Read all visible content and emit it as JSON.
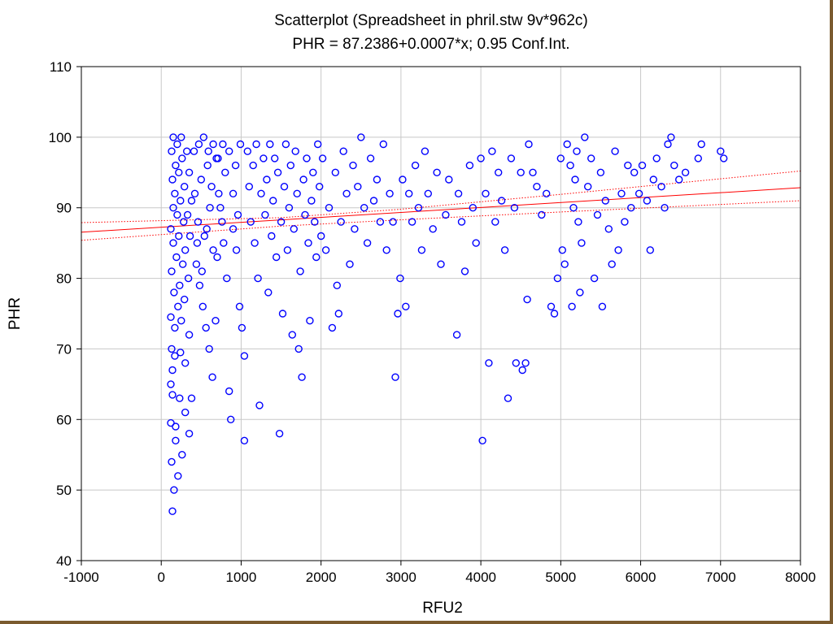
{
  "colors": {
    "points": "#0000ff",
    "fit_line": "#ff0000",
    "confidence_band": "#ff0000",
    "grid": "#c8c8c8",
    "frame": "#7a5a2e"
  },
  "chart_data": {
    "type": "scatter",
    "title": "Scatterplot (Spreadsheet in phril.stw 9v*962c)",
    "subtitle": "PHR = 87.2386+0.0007*x; 0.95 Conf.Int.",
    "xlabel": "RFU2",
    "ylabel": "PHR",
    "xlim": [
      -1000,
      8000
    ],
    "ylim": [
      40,
      110
    ],
    "xticks": [
      -1000,
      0,
      1000,
      2000,
      3000,
      4000,
      5000,
      6000,
      7000,
      8000
    ],
    "yticks": [
      40,
      50,
      60,
      70,
      80,
      90,
      100,
      110
    ],
    "grid": true,
    "legend": "none",
    "marker": "open-circle",
    "regression": {
      "intercept": 87.2386,
      "slope": 0.0007,
      "confidence": 0.95,
      "x_range": [
        -1000,
        8000
      ],
      "upper_band": [
        [
          -1000,
          87.9
        ],
        [
          1500,
          88.6
        ],
        [
          3000,
          89.8
        ],
        [
          5000,
          91.9
        ],
        [
          8000,
          95.2
        ]
      ],
      "lower_band": [
        [
          -1000,
          85.4
        ],
        [
          1500,
          87.4
        ],
        [
          3000,
          88.3
        ],
        [
          5000,
          89.4
        ],
        [
          8000,
          91.0
        ]
      ]
    },
    "points": [
      [
        140,
        47
      ],
      [
        130,
        54
      ],
      [
        160,
        50
      ],
      [
        210,
        52
      ],
      [
        260,
        55
      ],
      [
        180,
        57
      ],
      [
        120,
        59.5
      ],
      [
        180,
        59
      ],
      [
        230,
        63
      ],
      [
        140,
        63.5
      ],
      [
        300,
        61
      ],
      [
        350,
        58
      ],
      [
        380,
        63
      ],
      [
        120,
        65
      ],
      [
        140,
        67
      ],
      [
        170,
        69
      ],
      [
        240,
        69.5
      ],
      [
        130,
        70
      ],
      [
        300,
        68
      ],
      [
        350,
        72
      ],
      [
        170,
        73
      ],
      [
        250,
        74
      ],
      [
        120,
        74.5
      ],
      [
        210,
        76
      ],
      [
        290,
        77
      ],
      [
        160,
        78
      ],
      [
        230,
        79
      ],
      [
        340,
        80
      ],
      [
        130,
        81
      ],
      [
        270,
        82
      ],
      [
        190,
        83
      ],
      [
        300,
        84
      ],
      [
        150,
        85
      ],
      [
        220,
        86
      ],
      [
        360,
        86
      ],
      [
        120,
        87
      ],
      [
        280,
        88
      ],
      [
        200,
        89
      ],
      [
        330,
        89
      ],
      [
        150,
        90
      ],
      [
        240,
        91
      ],
      [
        380,
        91
      ],
      [
        170,
        92
      ],
      [
        290,
        93
      ],
      [
        140,
        94
      ],
      [
        220,
        95
      ],
      [
        350,
        95
      ],
      [
        180,
        96
      ],
      [
        260,
        97
      ],
      [
        130,
        98
      ],
      [
        320,
        98
      ],
      [
        200,
        99
      ],
      [
        150,
        100
      ],
      [
        250,
        100
      ],
      [
        420,
        92
      ],
      [
        460,
        88
      ],
      [
        500,
        94
      ],
      [
        540,
        86
      ],
      [
        580,
        96
      ],
      [
        610,
        90
      ],
      [
        650,
        84
      ],
      [
        690,
        97
      ],
      [
        720,
        92
      ],
      [
        760,
        88
      ],
      [
        800,
        95
      ],
      [
        440,
        82
      ],
      [
        480,
        79
      ],
      [
        520,
        76
      ],
      [
        560,
        73
      ],
      [
        600,
        70
      ],
      [
        640,
        66
      ],
      [
        680,
        74
      ],
      [
        410,
        98
      ],
      [
        470,
        99
      ],
      [
        530,
        100
      ],
      [
        590,
        98
      ],
      [
        650,
        99
      ],
      [
        710,
        97
      ],
      [
        770,
        99
      ],
      [
        450,
        85
      ],
      [
        510,
        81
      ],
      [
        570,
        87
      ],
      [
        630,
        93
      ],
      [
        700,
        83
      ],
      [
        740,
        90
      ],
      [
        780,
        85
      ],
      [
        820,
        80
      ],
      [
        850,
        64
      ],
      [
        870,
        60
      ],
      [
        900,
        92
      ],
      [
        930,
        96
      ],
      [
        960,
        89
      ],
      [
        990,
        99
      ],
      [
        850,
        98
      ],
      [
        900,
        87
      ],
      [
        940,
        84
      ],
      [
        980,
        76
      ],
      [
        1010,
        73
      ],
      [
        1040,
        69
      ],
      [
        1040,
        57
      ],
      [
        1080,
        98
      ],
      [
        1100,
        93
      ],
      [
        1120,
        88
      ],
      [
        1150,
        96
      ],
      [
        1170,
        85
      ],
      [
        1190,
        99
      ],
      [
        1210,
        80
      ],
      [
        1230,
        62
      ],
      [
        1250,
        92
      ],
      [
        1280,
        97
      ],
      [
        1300,
        89
      ],
      [
        1320,
        94
      ],
      [
        1340,
        78
      ],
      [
        1360,
        99
      ],
      [
        1380,
        86
      ],
      [
        1400,
        91
      ],
      [
        1420,
        97
      ],
      [
        1440,
        83
      ],
      [
        1460,
        95
      ],
      [
        1480,
        58
      ],
      [
        1500,
        88
      ],
      [
        1520,
        75
      ],
      [
        1540,
        93
      ],
      [
        1560,
        99
      ],
      [
        1580,
        84
      ],
      [
        1600,
        90
      ],
      [
        1620,
        96
      ],
      [
        1640,
        72
      ],
      [
        1660,
        87
      ],
      [
        1680,
        98
      ],
      [
        1700,
        92
      ],
      [
        1720,
        70
      ],
      [
        1740,
        81
      ],
      [
        1760,
        66
      ],
      [
        1780,
        94
      ],
      [
        1800,
        89
      ],
      [
        1820,
        97
      ],
      [
        1840,
        85
      ],
      [
        1860,
        74
      ],
      [
        1880,
        91
      ],
      [
        1900,
        95
      ],
      [
        1920,
        88
      ],
      [
        1940,
        83
      ],
      [
        1960,
        99
      ],
      [
        1980,
        93
      ],
      [
        2000,
        86
      ],
      [
        2020,
        97
      ],
      [
        2060,
        84
      ],
      [
        2100,
        90
      ],
      [
        2140,
        73
      ],
      [
        2180,
        95
      ],
      [
        2200,
        79
      ],
      [
        2220,
        75
      ],
      [
        2250,
        88
      ],
      [
        2280,
        98
      ],
      [
        2320,
        92
      ],
      [
        2360,
        82
      ],
      [
        2400,
        96
      ],
      [
        2420,
        87
      ],
      [
        2460,
        93
      ],
      [
        2500,
        100
      ],
      [
        2540,
        90
      ],
      [
        2580,
        85
      ],
      [
        2620,
        97
      ],
      [
        2660,
        91
      ],
      [
        2700,
        94
      ],
      [
        2740,
        88
      ],
      [
        2780,
        99
      ],
      [
        2820,
        84
      ],
      [
        2860,
        92
      ],
      [
        2900,
        88
      ],
      [
        2930,
        66
      ],
      [
        2960,
        75
      ],
      [
        2990,
        80
      ],
      [
        3020,
        94
      ],
      [
        3060,
        76
      ],
      [
        3100,
        92
      ],
      [
        3140,
        88
      ],
      [
        3180,
        96
      ],
      [
        3220,
        90
      ],
      [
        3260,
        84
      ],
      [
        3300,
        98
      ],
      [
        3340,
        92
      ],
      [
        3400,
        87
      ],
      [
        3450,
        95
      ],
      [
        3500,
        82
      ],
      [
        3560,
        89
      ],
      [
        3600,
        94
      ],
      [
        3700,
        72
      ],
      [
        3720,
        92
      ],
      [
        3760,
        88
      ],
      [
        3800,
        81
      ],
      [
        3860,
        96
      ],
      [
        3900,
        90
      ],
      [
        3940,
        85
      ],
      [
        4000,
        97
      ],
      [
        4020,
        57
      ],
      [
        4060,
        92
      ],
      [
        4100,
        68
      ],
      [
        4140,
        98
      ],
      [
        4180,
        88
      ],
      [
        4220,
        95
      ],
      [
        4260,
        91
      ],
      [
        4300,
        84
      ],
      [
        4340,
        63
      ],
      [
        4380,
        97
      ],
      [
        4420,
        90
      ],
      [
        4440,
        68
      ],
      [
        4500,
        95
      ],
      [
        4520,
        67
      ],
      [
        4560,
        68
      ],
      [
        4580,
        77
      ],
      [
        4600,
        99
      ],
      [
        4650,
        95
      ],
      [
        4700,
        93
      ],
      [
        4760,
        89
      ],
      [
        4820,
        92
      ],
      [
        4880,
        76
      ],
      [
        4920,
        75
      ],
      [
        4960,
        80
      ],
      [
        5000,
        97
      ],
      [
        5020,
        84
      ],
      [
        5050,
        82
      ],
      [
        5080,
        99
      ],
      [
        5120,
        96
      ],
      [
        5140,
        76
      ],
      [
        5160,
        90
      ],
      [
        5180,
        94
      ],
      [
        5200,
        98
      ],
      [
        5220,
        88
      ],
      [
        5240,
        78
      ],
      [
        5260,
        85
      ],
      [
        5300,
        100
      ],
      [
        5340,
        93
      ],
      [
        5380,
        97
      ],
      [
        5420,
        80
      ],
      [
        5460,
        89
      ],
      [
        5500,
        95
      ],
      [
        5520,
        76
      ],
      [
        5560,
        91
      ],
      [
        5600,
        87
      ],
      [
        5640,
        82
      ],
      [
        5680,
        98
      ],
      [
        5720,
        84
      ],
      [
        5760,
        92
      ],
      [
        5800,
        88
      ],
      [
        5840,
        96
      ],
      [
        5880,
        90
      ],
      [
        5920,
        95
      ],
      [
        5980,
        92
      ],
      [
        6020,
        96
      ],
      [
        6080,
        91
      ],
      [
        6120,
        84
      ],
      [
        6160,
        94
      ],
      [
        6200,
        97
      ],
      [
        6260,
        93
      ],
      [
        6300,
        90
      ],
      [
        6340,
        99
      ],
      [
        6380,
        100
      ],
      [
        6420,
        96
      ],
      [
        6480,
        94
      ],
      [
        6560,
        95
      ],
      [
        6720,
        97
      ],
      [
        6760,
        99
      ],
      [
        7000,
        98
      ],
      [
        7040,
        97
      ]
    ]
  }
}
